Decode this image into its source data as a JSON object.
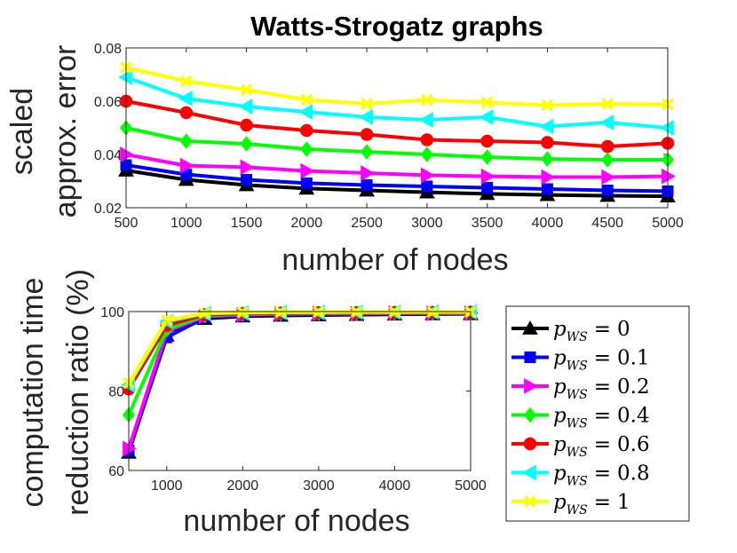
{
  "chart_data": [
    {
      "type": "line",
      "title": "Watts-Strogatz graphs",
      "xlabel": "number of nodes",
      "ylabel": [
        "scaled",
        "approx. error"
      ],
      "x": [
        500,
        1000,
        1500,
        2000,
        2500,
        3000,
        3500,
        4000,
        4500,
        5000
      ],
      "xlim": [
        500,
        5000
      ],
      "ylim": [
        0.02,
        0.08
      ],
      "xticks": [
        500,
        1000,
        1500,
        2000,
        2500,
        3000,
        3500,
        4000,
        4500,
        5000
      ],
      "yticks": [
        0.02,
        0.04,
        0.06,
        0.08
      ],
      "ytick_labels": [
        "0.02",
        "0.04",
        "0.06",
        "0.08"
      ],
      "grid": false,
      "series": [
        {
          "name": "p_WS = 0",
          "color": "#000000",
          "marker": "triangle-up",
          "values": [
            0.034,
            0.0305,
            0.0285,
            0.0272,
            0.0265,
            0.0258,
            0.0252,
            0.0248,
            0.0245,
            0.0243
          ]
        },
        {
          "name": "p_WS = 0.1",
          "color": "#0000ff",
          "marker": "square",
          "values": [
            0.036,
            0.0325,
            0.0305,
            0.0292,
            0.0285,
            0.028,
            0.0275,
            0.027,
            0.0265,
            0.0262
          ]
        },
        {
          "name": "p_WS = 0.2",
          "color": "#ff00ff",
          "marker": "triangle-right",
          "values": [
            0.04,
            0.0358,
            0.0352,
            0.0338,
            0.033,
            0.0322,
            0.0318,
            0.0315,
            0.0315,
            0.0318
          ]
        },
        {
          "name": "p_WS = 0.4",
          "color": "#00ff00",
          "marker": "diamond",
          "values": [
            0.05,
            0.045,
            0.044,
            0.042,
            0.041,
            0.04,
            0.039,
            0.0383,
            0.038,
            0.038
          ]
        },
        {
          "name": "p_WS = 0.6",
          "color": "#ff0000",
          "marker": "circle",
          "values": [
            0.06,
            0.0557,
            0.051,
            0.049,
            0.0475,
            0.0455,
            0.045,
            0.0445,
            0.043,
            0.0442
          ]
        },
        {
          "name": "p_WS = 0.8",
          "color": "#00ffff",
          "marker": "triangle-left",
          "values": [
            0.069,
            0.061,
            0.058,
            0.056,
            0.054,
            0.053,
            0.054,
            0.0505,
            0.052,
            0.05
          ]
        },
        {
          "name": "p_WS = 1",
          "color": "#ffff00",
          "marker": "x",
          "values": [
            0.0727,
            0.0675,
            0.0643,
            0.0605,
            0.059,
            0.0605,
            0.0595,
            0.0585,
            0.059,
            0.0588
          ]
        }
      ]
    },
    {
      "type": "line",
      "title": "",
      "xlabel": "number of nodes",
      "ylabel": [
        "computation time",
        "reduction ratio (%)"
      ],
      "x": [
        500,
        1000,
        1500,
        2000,
        2500,
        3000,
        3500,
        4000,
        4500,
        5000
      ],
      "xlim": [
        500,
        5000
      ],
      "ylim": [
        60,
        100
      ],
      "xticks": [
        1000,
        2000,
        3000,
        4000,
        5000
      ],
      "yticks": [
        60,
        80,
        100
      ],
      "ytick_labels": [
        "60",
        "80",
        "100"
      ],
      "grid": false,
      "legend": "outside-right",
      "series": [
        {
          "name": "p_WS = 0",
          "color": "#000000",
          "marker": "triangle-up",
          "values": [
            64.5,
            94,
            98.2,
            98.8,
            99.0,
            99.1,
            99.2,
            99.3,
            99.35,
            99.4
          ]
        },
        {
          "name": "p_WS = 0.1",
          "color": "#0000ff",
          "marker": "square",
          "values": [
            65,
            93.5,
            98.5,
            99.0,
            99.2,
            99.3,
            99.4,
            99.4,
            99.5,
            99.5
          ]
        },
        {
          "name": "p_WS = 0.2",
          "color": "#ff00ff",
          "marker": "triangle-right",
          "values": [
            65.5,
            95,
            98.8,
            99.2,
            99.4,
            99.5,
            99.5,
            99.6,
            99.6,
            99.6
          ]
        },
        {
          "name": "p_WS = 0.4",
          "color": "#00ff00",
          "marker": "diamond",
          "values": [
            74,
            95.5,
            99.0,
            99.4,
            99.5,
            99.6,
            99.6,
            99.7,
            99.7,
            99.7
          ]
        },
        {
          "name": "p_WS = 0.6",
          "color": "#ff0000",
          "marker": "circle",
          "values": [
            80.5,
            96.5,
            99.2,
            99.5,
            99.6,
            99.7,
            99.7,
            99.75,
            99.75,
            99.8
          ]
        },
        {
          "name": "p_WS = 0.8",
          "color": "#00ffff",
          "marker": "triangle-left",
          "values": [
            81.5,
            97.5,
            99.5,
            99.7,
            99.8,
            99.8,
            99.85,
            99.85,
            99.9,
            99.9
          ]
        },
        {
          "name": "p_WS = 1",
          "color": "#ffff00",
          "marker": "x",
          "values": [
            82,
            97.8,
            99.6,
            99.8,
            99.85,
            99.9,
            99.9,
            99.9,
            99.9,
            99.9
          ]
        }
      ]
    }
  ],
  "legend": {
    "symbol_base": "p",
    "symbol_sub": "WS",
    "operator": "=",
    "entries": [
      {
        "value": "0",
        "color": "#000000",
        "marker": "triangle-up"
      },
      {
        "value": "0.1",
        "color": "#0000ff",
        "marker": "square"
      },
      {
        "value": "0.2",
        "color": "#ff00ff",
        "marker": "triangle-right"
      },
      {
        "value": "0.4",
        "color": "#00ff00",
        "marker": "diamond"
      },
      {
        "value": "0.6",
        "color": "#ff0000",
        "marker": "circle"
      },
      {
        "value": "0.8",
        "color": "#00ffff",
        "marker": "triangle-left"
      },
      {
        "value": "1",
        "color": "#ffff00",
        "marker": "x"
      }
    ]
  }
}
